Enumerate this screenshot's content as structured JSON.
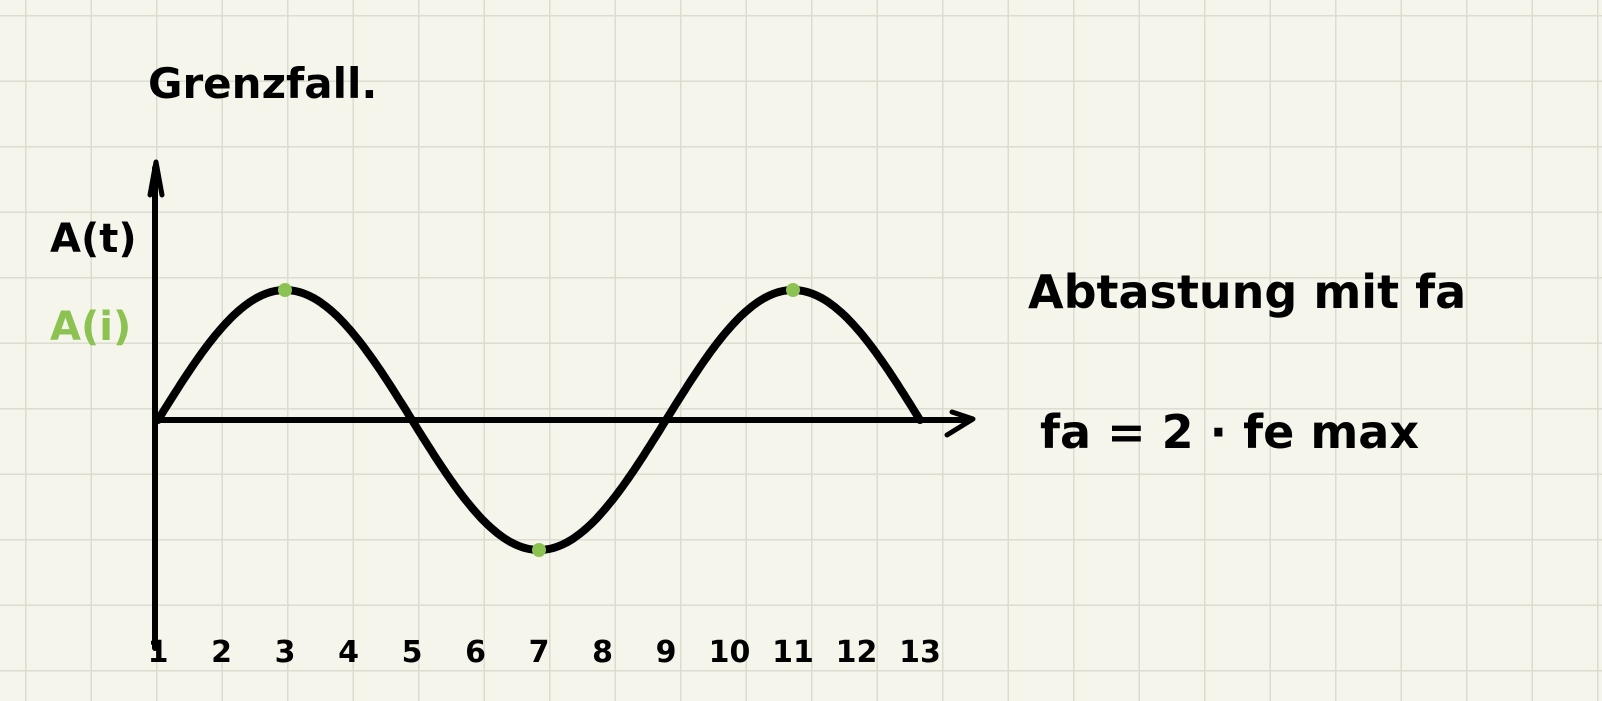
{
  "title": "Grenzfall.",
  "y_axis_label": "A(t)",
  "sample_label": "A(i)",
  "x_ticks": [
    "1",
    "2",
    "3",
    "4",
    "5",
    "6",
    "7",
    "8",
    "9",
    "10",
    "11",
    "12",
    "13"
  ],
  "note_line1": "Abtastung mit fa",
  "note_line2": "fa = 2 · fe max",
  "colors": {
    "ink": "#000000",
    "sample": "#8cc251",
    "paper": "#f5f5eb",
    "grid": "#dcdcd0"
  },
  "chart_data": {
    "type": "line",
    "x": [
      1,
      2,
      3,
      4,
      5,
      6,
      7,
      8,
      9,
      10,
      11,
      12,
      13
    ],
    "series": [
      {
        "values": [
          0,
          0.7,
          1,
          0.7,
          0,
          -0.7,
          -1,
          -0.7,
          0,
          0.7,
          1,
          0.7,
          0
        ]
      }
    ],
    "samples": [
      {
        "x": 3,
        "y": 1
      },
      {
        "x": 7,
        "y": -1
      },
      {
        "x": 11,
        "y": 1
      }
    ]
  }
}
